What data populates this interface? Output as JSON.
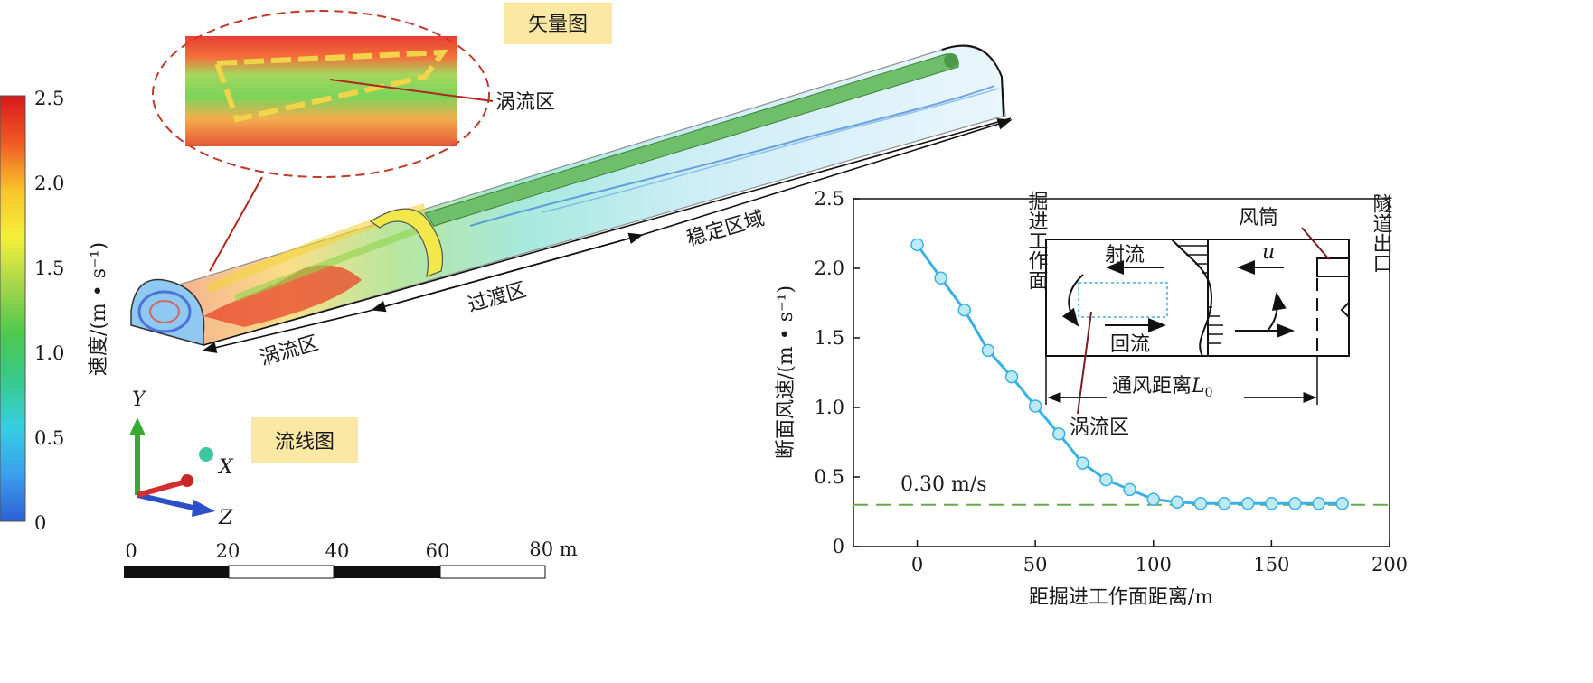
{
  "colorbar": {
    "label": "速度/(m • s⁻¹)",
    "ticks": [
      "2.5",
      "2.0",
      "1.5",
      "1.0",
      "0.5",
      "0"
    ],
    "stops": [
      "#d7191c",
      "#f05a24",
      "#f7c52a",
      "#f4ef3a",
      "#a6d64a",
      "#4fc94c",
      "#38c98a",
      "#36cfe0",
      "#3aa0ee",
      "#2f5fd6"
    ]
  },
  "labels": {
    "vector_title": "矢量图",
    "streamline_title": "流线图",
    "vortex_callout": "涡流区",
    "zone_vortex": "涡流区",
    "zone_transition": "过渡区",
    "zone_stable": "稳定区域"
  },
  "axes_triad": {
    "y": "Y",
    "x": "X",
    "z": "Z"
  },
  "scale_bar": {
    "ticks": [
      "0",
      "20",
      "40",
      "60",
      "80 m"
    ]
  },
  "inset": {
    "face": "掘进工作面",
    "exit": "隧道出口",
    "duct": "风筒",
    "jet": "射流",
    "backflow": "回流",
    "velocity_symbol": "u",
    "distance_text": "通风距离",
    "distance_symbol": "L",
    "distance_subscript": "0",
    "vortex": "涡流区"
  },
  "chart_data": {
    "type": "line",
    "title": "",
    "xlabel": "距掘进工作面距离/m",
    "ylabel": "断面风速/(m • s⁻¹)",
    "xlim": [
      -27,
      200
    ],
    "ylim": [
      0,
      2.5
    ],
    "xticks": [
      0,
      50,
      100,
      150,
      200
    ],
    "yticks": [
      0,
      0.5,
      1.0,
      1.5,
      2.0,
      2.5
    ],
    "xtick_labels": [
      "0",
      "50",
      "100",
      "150",
      "200"
    ],
    "ytick_labels": [
      "0",
      "0.5",
      "1.0",
      "1.5",
      "2.0",
      "2.5"
    ],
    "series": [
      {
        "color": "#3ab0e4",
        "x": [
          0,
          10,
          20,
          30,
          40,
          50,
          60,
          70,
          80,
          90,
          100,
          110,
          120,
          130,
          140,
          150,
          160,
          170,
          180
        ],
        "y": [
          2.17,
          1.93,
          1.7,
          1.41,
          1.22,
          1.01,
          0.81,
          0.6,
          0.48,
          0.41,
          0.34,
          0.32,
          0.31,
          0.31,
          0.31,
          0.31,
          0.31,
          0.31,
          0.31
        ]
      }
    ],
    "reference_line": {
      "y": 0.3,
      "label": "0.30 m/s",
      "color": "#6aa84f"
    }
  }
}
